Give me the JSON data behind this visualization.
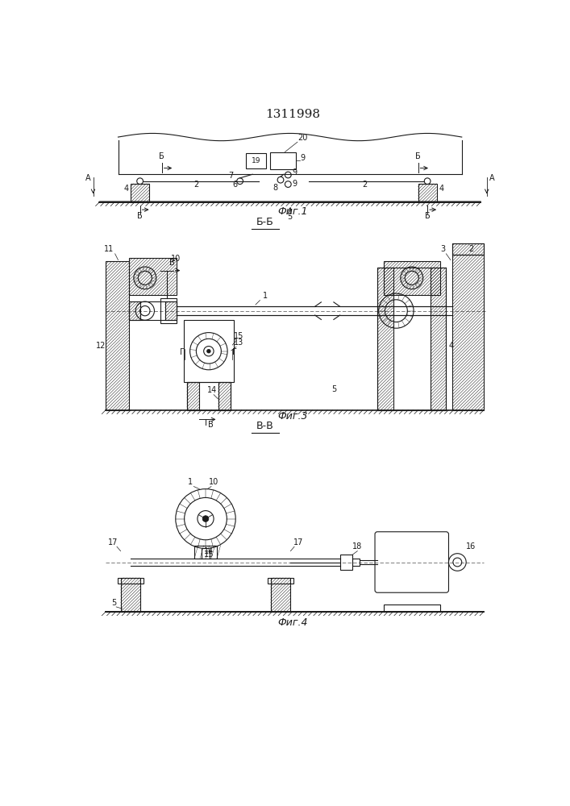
{
  "title": "1311998",
  "fig1_caption": "Фиг.1",
  "fig3_caption": "Фиг.3",
  "fig4_caption": "Фиг.4",
  "section_bb": "Б-Б",
  "section_vv": "В-В",
  "bg_color": "#ffffff",
  "line_color": "#1a1a1a",
  "fig_width": 7.07,
  "fig_height": 10.0
}
